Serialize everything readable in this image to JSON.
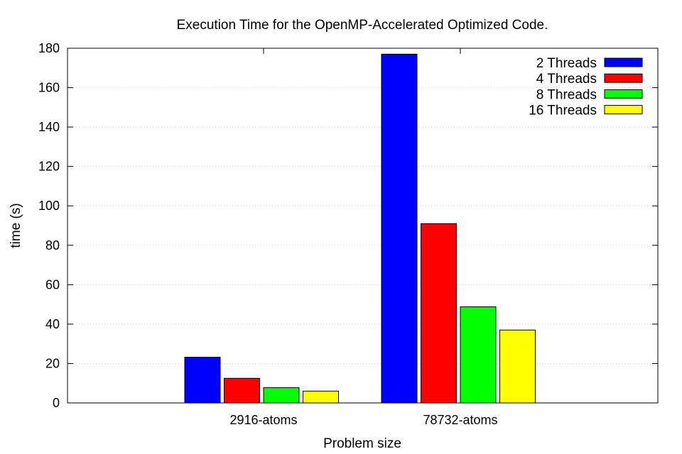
{
  "chart_data": {
    "type": "bar",
    "title": "Execution Time for the OpenMP-Accelerated Optimized Code.",
    "xlabel": "Problem size",
    "ylabel": "time (s)",
    "ylim": [
      0,
      180
    ],
    "yticks": [
      0,
      20,
      40,
      60,
      80,
      100,
      120,
      140,
      160,
      180
    ],
    "grid": true,
    "legend_position": "top-right",
    "categories": [
      "2916-atoms",
      "78732-atoms"
    ],
    "series": [
      {
        "name": "2 Threads",
        "color": "#0000ff",
        "values": [
          23.2,
          177.0
        ]
      },
      {
        "name": "4 Threads",
        "color": "#ff0000",
        "values": [
          12.5,
          91.0
        ]
      },
      {
        "name": "8 Threads",
        "color": "#00ff00",
        "values": [
          7.8,
          48.8
        ]
      },
      {
        "name": "16 Threads",
        "color": "#ffff00",
        "values": [
          6.0,
          37.0
        ]
      }
    ]
  }
}
